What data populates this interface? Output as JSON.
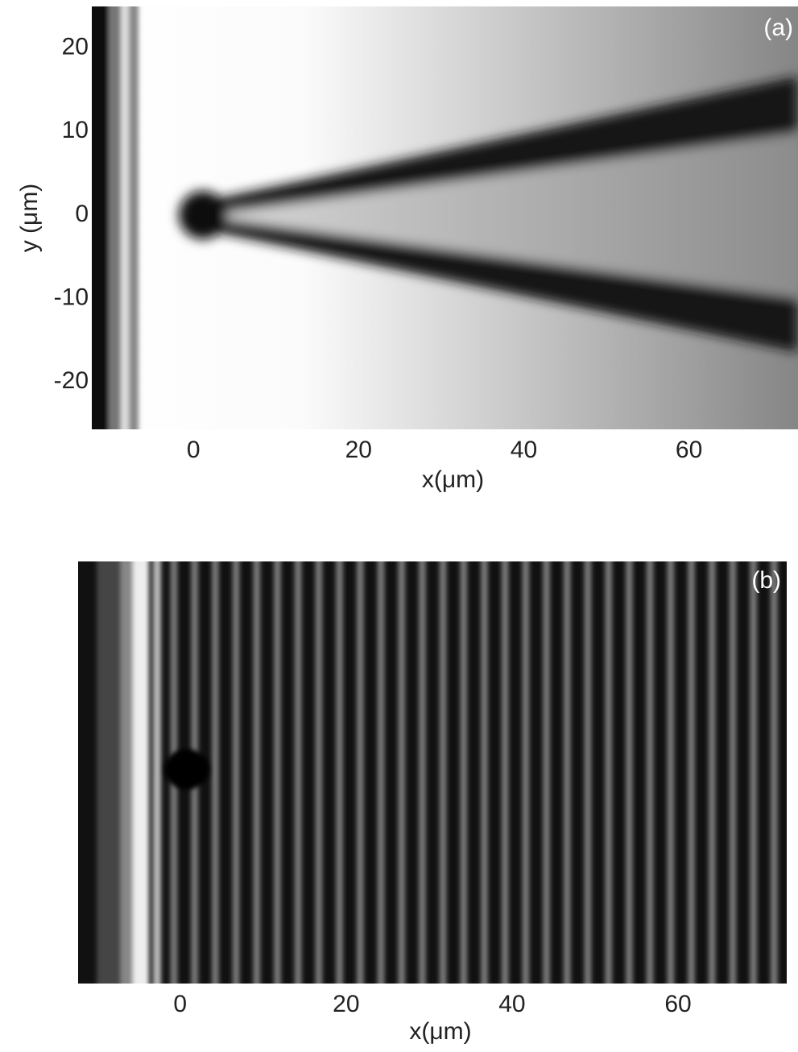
{
  "chart_data": [
    {
      "type": "heatmap",
      "panel_label": "(a)",
      "xlabel": "x(μm)",
      "ylabel": "y (μm)",
      "xlim": [
        -12.3,
        73.2
      ],
      "ylim": [
        -25.7,
        25
      ],
      "xticks": [
        0,
        20,
        40,
        60
      ],
      "yticks": [
        -20,
        -10,
        0,
        10,
        20
      ]
    },
    {
      "type": "heatmap",
      "panel_label": "(b)",
      "xlabel": "x(μm)",
      "xlim": [
        -12.3,
        73.1
      ],
      "xticks": [
        0,
        20,
        40,
        60
      ]
    }
  ]
}
